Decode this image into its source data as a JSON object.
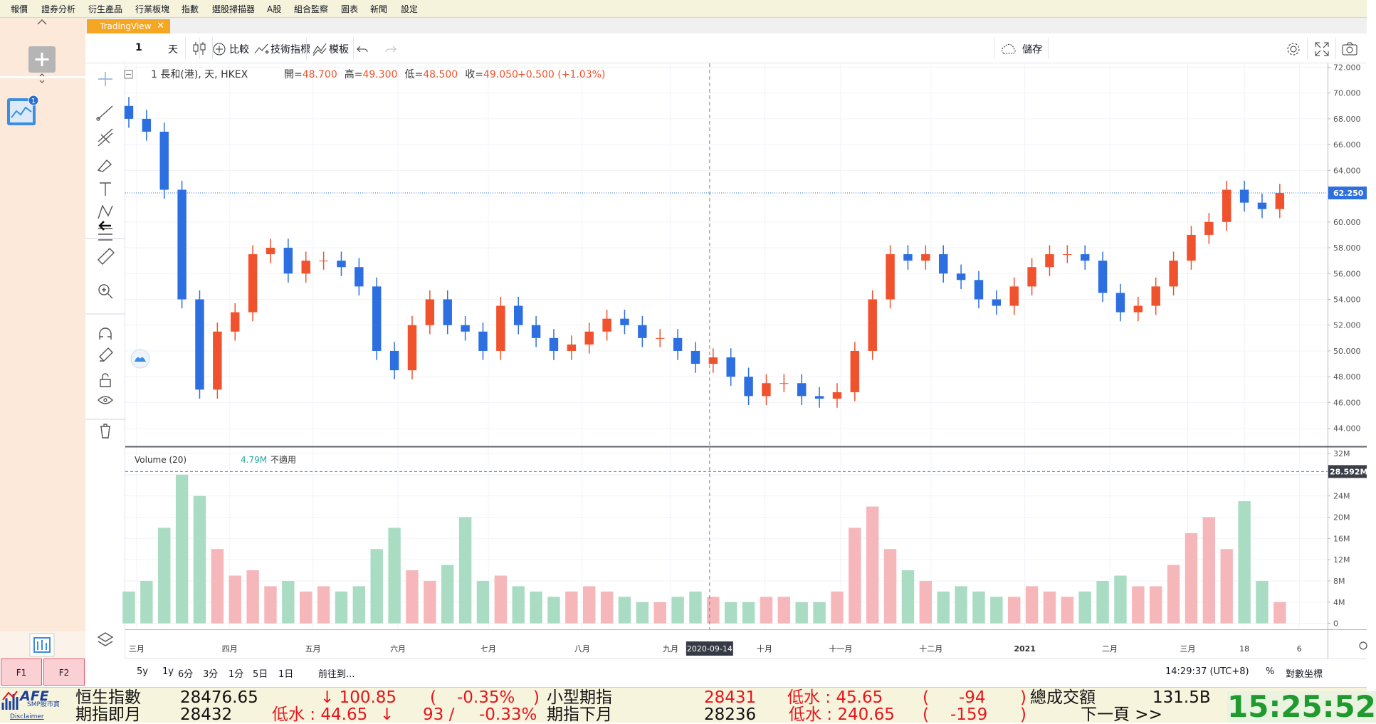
{
  "menu": [
    "報價",
    "證券分析",
    "衍生產品",
    "行業板塊",
    "指數",
    "選股掃描器",
    "A股",
    "組合監察",
    "圖表",
    "新聞",
    "設定"
  ],
  "tab": "TradingView",
  "toolbar": {
    "symbol": "1",
    "interval": "天",
    "compare": "比較",
    "indicators": "技術指標",
    "templates": "模板",
    "save": "儲存"
  },
  "left_panel": {
    "badge": "1",
    "f1": "F1",
    "f2": "F2"
  },
  "chart_data": {
    "type": "candlestick",
    "title": "1 長和(港), 天, HKEX",
    "ohlc_labels": [
      {
        "name": "開=",
        "value": 48.7,
        "label": "48.700"
      },
      {
        "name": "高=",
        "value": 49.3,
        "label": "49.300"
      },
      {
        "name": "低=",
        "value": 48.5,
        "label": "48.500"
      },
      {
        "name": "收=",
        "value": 49.05,
        "label": "49.050"
      }
    ],
    "change": "+0.500 (+1.03%)",
    "up_color": "#f0522e",
    "down_color": "#2d6fe0",
    "grid": true,
    "xlim": [
      -0.2,
      67.7
    ],
    "xticks": [
      {
        "value": 0.44,
        "label": "三月"
      },
      {
        "value": 5.7,
        "label": "四月"
      },
      {
        "value": 10.4,
        "label": "五月"
      },
      {
        "value": 15.2,
        "label": "六月"
      },
      {
        "value": 20.3,
        "label": "七月"
      },
      {
        "value": 25.6,
        "label": "八月"
      },
      {
        "value": 30.6,
        "label": "九月"
      },
      {
        "value": 35.9,
        "label": "十月"
      },
      {
        "value": 40.2,
        "label": "十一月"
      },
      {
        "value": 45.3,
        "label": "十二月"
      },
      {
        "value": 50.6,
        "label": "2021"
      },
      {
        "value": 55.4,
        "label": "二月"
      },
      {
        "value": 59.8,
        "label": "三月"
      },
      {
        "value": 63.0,
        "label": "18"
      },
      {
        "value": 66.1,
        "label": "6"
      }
    ],
    "ylim": [
      42.6,
      72.3
    ],
    "yticks": [
      {
        "value": 44,
        "label": "44.000"
      },
      {
        "value": 46,
        "label": "46.000"
      },
      {
        "value": 48,
        "label": "48.000"
      },
      {
        "value": 50,
        "label": "50.000"
      },
      {
        "value": 52,
        "label": "52.000"
      },
      {
        "value": 54,
        "label": "54.000"
      },
      {
        "value": 56,
        "label": "56.000"
      },
      {
        "value": 58,
        "label": "58.000"
      },
      {
        "value": 60,
        "label": "60.000"
      },
      {
        "value": 62,
        "label": "62.000"
      },
      {
        "value": 64,
        "label": "64.000"
      },
      {
        "value": 66,
        "label": "66.000"
      },
      {
        "value": 68,
        "label": "68.000"
      },
      {
        "value": 70,
        "label": "70.000"
      },
      {
        "value": 72,
        "label": "72.000"
      }
    ],
    "open": [
      69,
      68,
      67,
      62.5,
      54,
      47,
      51.5,
      53,
      57.5,
      58,
      56,
      57,
      57,
      56.5,
      55,
      50,
      48.5,
      52,
      54,
      52,
      51.5,
      50,
      53.5,
      52,
      51,
      50,
      50.5,
      51.5,
      52.5,
      52,
      51,
      51,
      50,
      49,
      49.5,
      48,
      46.5,
      47.5,
      47.5,
      46.5,
      46.3,
      46.8,
      50,
      54,
      57.5,
      57,
      57.5,
      56,
      55.5,
      54,
      53.5,
      55,
      56.5,
      57.5,
      57.5,
      57,
      54.5,
      53,
      53.5,
      55,
      57,
      59,
      60,
      62.5,
      61.5,
      61
    ],
    "high": [
      69.7,
      68.7,
      67.7,
      63.2,
      54.7,
      52.2,
      53.7,
      58.2,
      58.7,
      58.7,
      57.7,
      57.7,
      57.7,
      57.2,
      55.7,
      50.7,
      52.7,
      54.7,
      54.7,
      52.7,
      52.2,
      54.2,
      54.2,
      52.7,
      51.7,
      51.2,
      52.2,
      53.2,
      53.2,
      52.7,
      51.7,
      51.7,
      50.7,
      50.2,
      50.2,
      48.7,
      48.2,
      48.2,
      48.2,
      47.2,
      47.5,
      50.7,
      54.7,
      58.2,
      58.2,
      58.2,
      58.2,
      56.7,
      56.2,
      54.7,
      55.7,
      57.2,
      58.2,
      58.2,
      58.2,
      57.7,
      55.2,
      54.2,
      55.7,
      57.7,
      59.7,
      60.7,
      63.2,
      63.2,
      62.2,
      62.95
    ],
    "low": [
      67.3,
      66.3,
      61.8,
      53.3,
      46.3,
      46.3,
      50.8,
      52.3,
      56.8,
      55.3,
      55.3,
      56.3,
      55.8,
      54.3,
      49.3,
      47.8,
      47.8,
      51.3,
      51.3,
      50.8,
      49.3,
      49.3,
      51.3,
      50.3,
      49.3,
      49.3,
      49.8,
      50.8,
      51.3,
      50.3,
      50.3,
      49.3,
      48.3,
      48.3,
      47.3,
      45.8,
      45.8,
      46.8,
      45.8,
      45.6,
      45.6,
      46.1,
      49.3,
      53.3,
      56.3,
      56.3,
      55.3,
      54.8,
      53.3,
      52.8,
      52.8,
      54.3,
      55.8,
      56.8,
      56.3,
      53.8,
      52.3,
      52.3,
      52.8,
      54.3,
      56.3,
      58.3,
      59.3,
      60.8,
      60.3,
      60.3
    ],
    "close": [
      68,
      67,
      62.5,
      54,
      47,
      51.5,
      53,
      57.5,
      58,
      56,
      57,
      57,
      56.5,
      55,
      50,
      48.5,
      52,
      54,
      52,
      51.5,
      50,
      53.5,
      52,
      51,
      50,
      50.5,
      51.5,
      52.5,
      52,
      51,
      51,
      50,
      49,
      49.5,
      48,
      46.5,
      47.5,
      47.5,
      46.5,
      46.3,
      46.8,
      50,
      54,
      57.5,
      57,
      57.5,
      56,
      55.5,
      54,
      53.5,
      55,
      56.5,
      57.5,
      57.5,
      57,
      54.5,
      53,
      53.5,
      55,
      57,
      59,
      60,
      62.5,
      61.5,
      61,
      62.25
    ],
    "last_price": {
      "value": 62.25,
      "label": "62.250"
    },
    "crosshair": {
      "value": 32.8,
      "label": "2020-09-14"
    },
    "volume": {
      "title": "Volume (20)",
      "value_label": "4.79M",
      "note": "不適用",
      "up_color": "#f5b7ba",
      "down_color": "#a9dcc3",
      "ylim": [
        -0.85,
        33.2
      ],
      "yticks": [
        0,
        {
          "value": 4,
          "label": "4M"
        },
        {
          "value": 8,
          "label": "8M"
        },
        {
          "value": 12,
          "label": "12M"
        },
        {
          "value": 16,
          "label": "16M"
        },
        {
          "value": 20,
          "label": "20M"
        },
        {
          "value": 24,
          "label": "24M"
        },
        {
          "value": 28,
          "label": "28M"
        },
        {
          "value": 32,
          "label": "32M"
        }
      ],
      "values": [
        6,
        8,
        18,
        28,
        24,
        14,
        9,
        10,
        7,
        8,
        6,
        7,
        6,
        7,
        14,
        18,
        10,
        8,
        11,
        20,
        8,
        9,
        7,
        6,
        5,
        6,
        7,
        6,
        5,
        4,
        4,
        5,
        6,
        5,
        4,
        4,
        5,
        5,
        4,
        4,
        6,
        18,
        22,
        14,
        10,
        8,
        6,
        7,
        6,
        5,
        5,
        7,
        6,
        5,
        6,
        8,
        9,
        7,
        7,
        11,
        17,
        20,
        14,
        23,
        8,
        4
      ],
      "last": {
        "value": 28.592,
        "label": "28.592M"
      }
    }
  },
  "bottom_bar": {
    "ranges": [
      "5y",
      "1y",
      "6分",
      "3分",
      "1分",
      "5日",
      "1日"
    ],
    "goto": "前往到...",
    "time": "14:29:37 (UTC+8)",
    "percent": "%",
    "log": "對數坐標"
  },
  "ticker": {
    "logo": "AFE",
    "logo_sub": "SMP股市寶",
    "disclaimer": "Disclaimer",
    "row1": {
      "name": "恒生指數",
      "value": "28476.65",
      "change": "↓ 100.85",
      "open": "(",
      "pct": "-0.35%",
      "close": ")",
      "name2": "小型期指",
      "value2": "28431",
      "discount": "低水 : 45.65",
      "open2": "(",
      "diff": "-94",
      "close2": ")",
      "name3": "總成交額",
      "turnover": "131.5B"
    },
    "row2": {
      "name": "期指即月",
      "value": "28432",
      "discount": "低水 : 44.65",
      "arrow": "↓",
      "change": "93 /",
      "pct": "-0.33%",
      "name2": "期指下月",
      "value2": "28236",
      "discount2": "低水 : 240.65",
      "open2": "(",
      "diff": "-159",
      "close2": ")",
      "next": "下一頁 >>"
    },
    "clock": "15:25:52"
  }
}
